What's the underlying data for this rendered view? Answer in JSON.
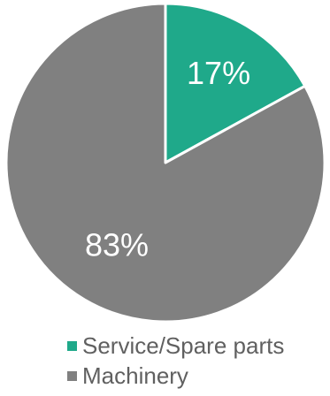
{
  "chart_data": {
    "type": "pie",
    "start_angle_deg": 0,
    "direction": "clockwise",
    "slices": [
      {
        "label": "Service/Spare parts",
        "value": 17,
        "display": "17%",
        "color": "#1fa98a"
      },
      {
        "label": "Machinery",
        "value": 83,
        "display": "83%",
        "color": "#808080"
      }
    ],
    "slice_border_color": "#ffffff",
    "legend": {
      "position": "bottom",
      "items": [
        {
          "label": "Service/Spare parts",
          "color": "#1fa98a"
        },
        {
          "label": "Machinery",
          "color": "#808080"
        }
      ]
    }
  }
}
